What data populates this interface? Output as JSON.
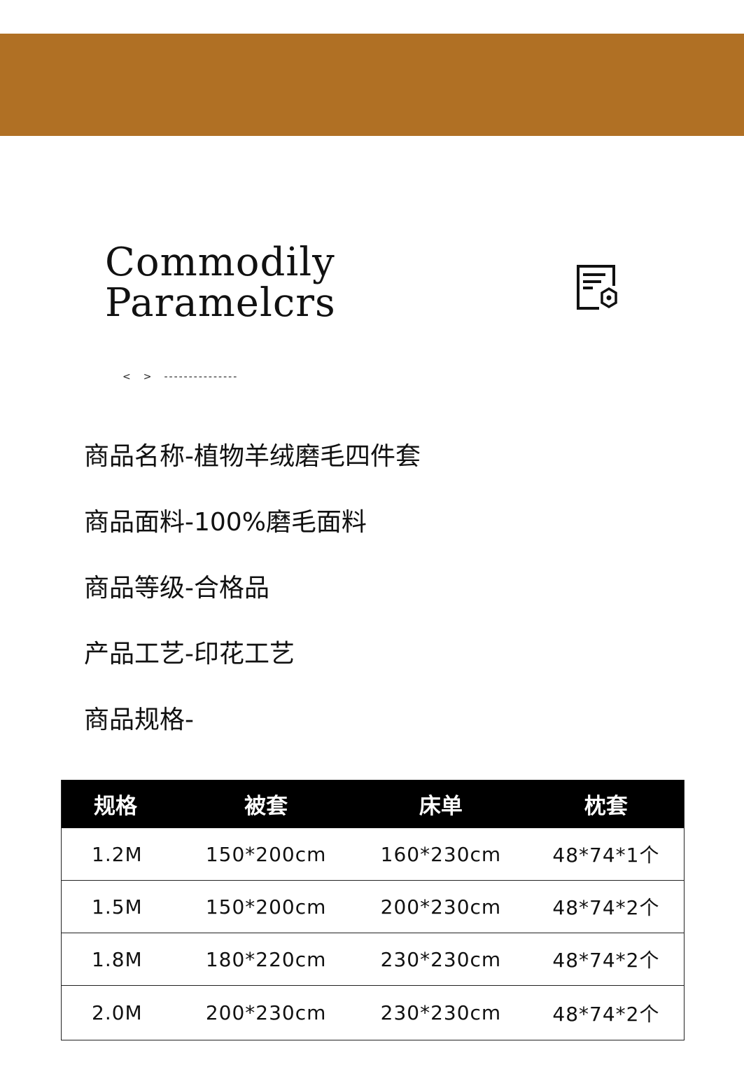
{
  "colors": {
    "banner": "#b07024",
    "header_bg": "#000000"
  },
  "heading": {
    "line1": "Commodily",
    "line2": "Paramelcrs"
  },
  "icon": "document-settings-icon",
  "nav": {
    "prev": "<",
    "next": ">",
    "dashes": "---------------"
  },
  "params": [
    "商品名称-植物羊绒磨毛四件套",
    "商品面料-100%磨毛面料",
    "商品等级-合格品",
    "产品工艺-印花工艺",
    "商品规格-"
  ],
  "table": {
    "headers": [
      "规格",
      "被套",
      "床单",
      "枕套"
    ],
    "rows": [
      [
        "1.2M",
        "150*200cm",
        "160*230cm",
        "48*74*1个"
      ],
      [
        "1.5M",
        "150*200cm",
        "200*230cm",
        "48*74*2个"
      ],
      [
        "1.8M",
        "180*220cm",
        "230*230cm",
        "48*74*2个"
      ],
      [
        "2.0M",
        "200*230cm",
        "230*230cm",
        "48*74*2个"
      ]
    ]
  }
}
